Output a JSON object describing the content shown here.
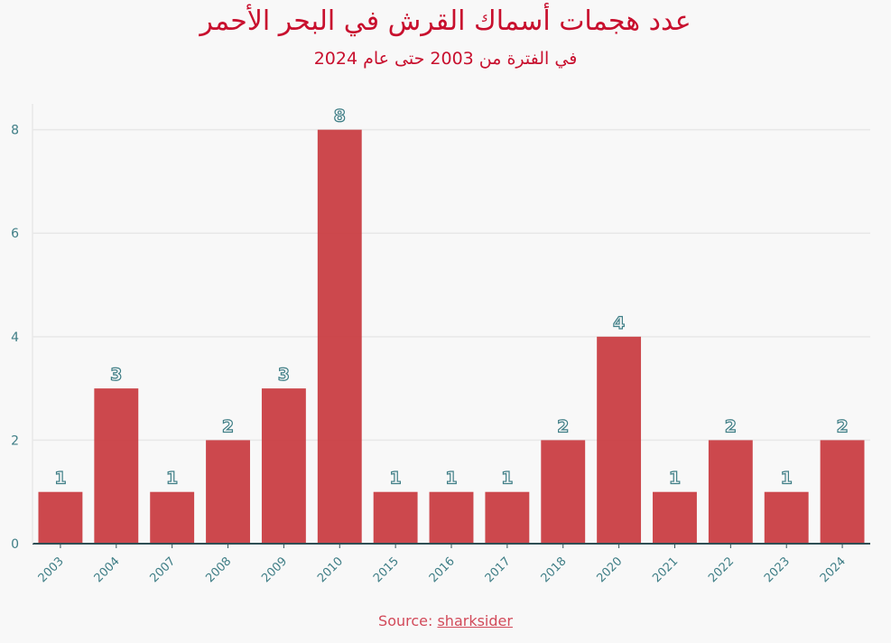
{
  "header": {
    "title": "عدد هجمات أسماك القرش في البحر الأحمر",
    "subtitle": "في الفترة من 2003 حتى عام 2024"
  },
  "footer": {
    "source_prefix": "Source: ",
    "source_link": "sharksider"
  },
  "colors": {
    "bar": "#c8383e",
    "title": "#c8102e",
    "axis_text": "#3f7e86",
    "grid": "#e8e8e8",
    "axis_line": "#2f4f55",
    "background": "#f8f8f8"
  },
  "chart_data": {
    "type": "bar",
    "categories": [
      "2003",
      "2004",
      "2007",
      "2008",
      "2009",
      "2010",
      "2015",
      "2016",
      "2017",
      "2018",
      "2020",
      "2021",
      "2022",
      "2023",
      "2024"
    ],
    "values": [
      1,
      3,
      1,
      2,
      3,
      8,
      1,
      1,
      1,
      2,
      4,
      1,
      2,
      1,
      2
    ],
    "title": "عدد هجمات أسماك القرش في البحر الأحمر",
    "subtitle": "في الفترة من 2003 حتى عام 2024",
    "xlabel": "",
    "ylabel": "",
    "ylim": [
      0,
      8.5
    ],
    "yticks": [
      0,
      2,
      4,
      6,
      8
    ],
    "grid": true,
    "data_labels": true
  }
}
